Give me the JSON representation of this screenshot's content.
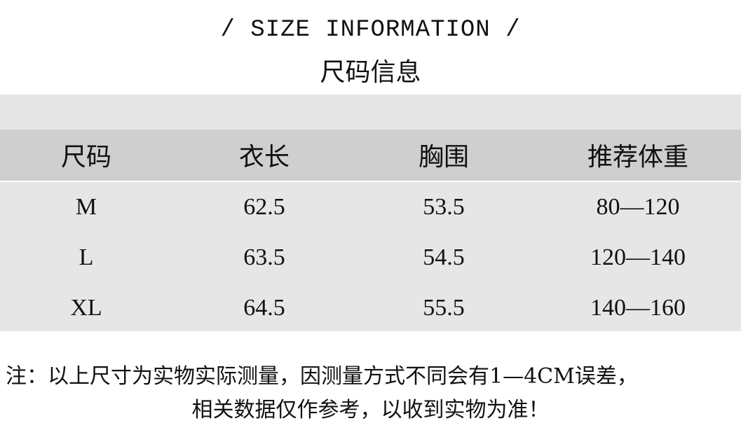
{
  "title_en": "/ SIZE INFORMATION /",
  "title_cn": "尺码信息",
  "table": {
    "headers": [
      "尺码",
      "衣长",
      "胸围",
      "推荐体重"
    ],
    "rows": [
      [
        "M",
        "62.5",
        "53.5",
        "80—120"
      ],
      [
        "L",
        "63.5",
        "54.5",
        "120—140"
      ],
      [
        "XL",
        "64.5",
        "55.5",
        "140—160"
      ]
    ]
  },
  "notes": {
    "line1": "注：以上尺寸为实物实际测量，因测量方式不同会有1—4CM误差，",
    "line2": "相关数据仅作参考，以收到实物为准！"
  },
  "colors": {
    "header_bg": "#d0cfcf",
    "body_bg": "#e6e6e6"
  }
}
